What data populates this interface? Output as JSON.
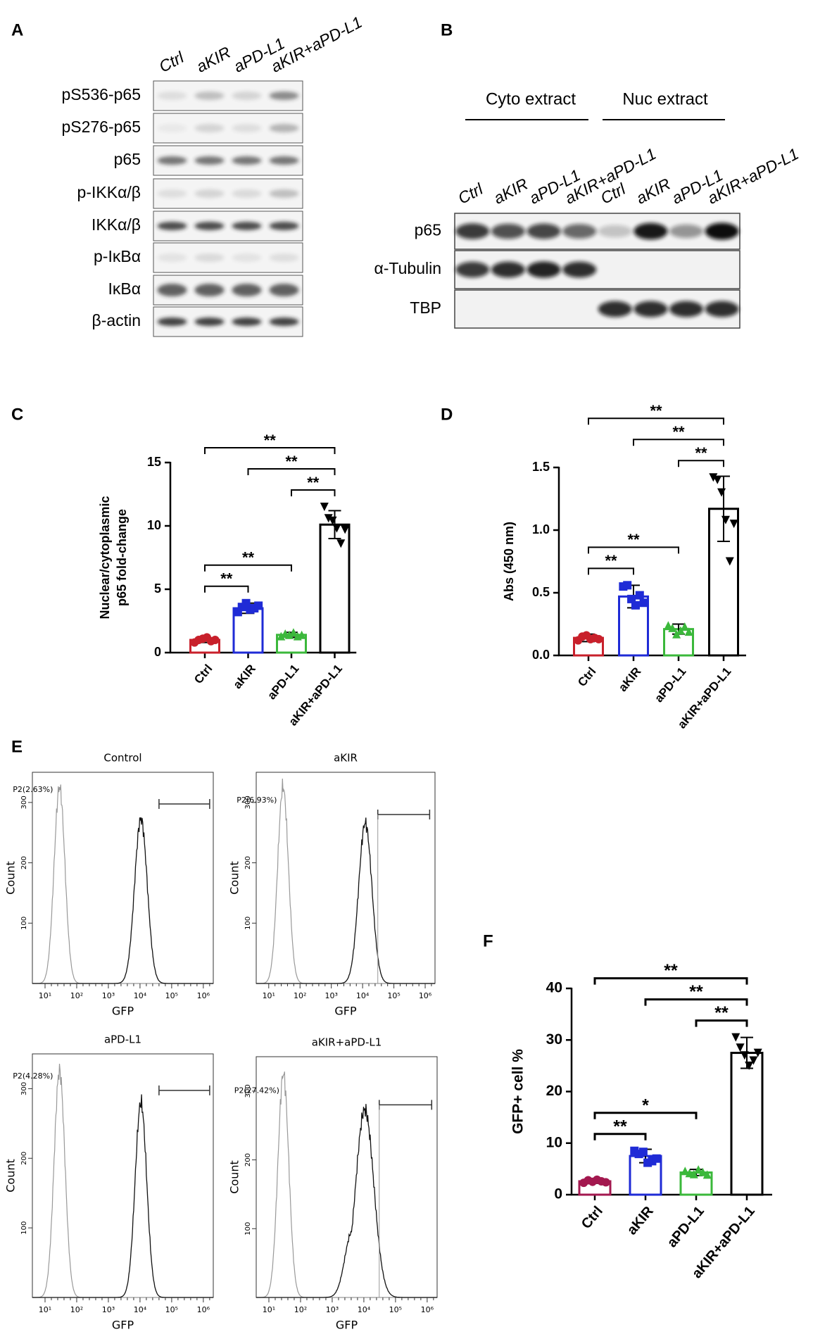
{
  "panel_labels": [
    "A",
    "B",
    "C",
    "D",
    "E",
    "F"
  ],
  "blot_a": {
    "lanes": [
      "Ctrl",
      "aKIR",
      "aPD-L1",
      "aKIR+aPD-L1"
    ],
    "rows": [
      "pS536-p65",
      "pS276-p65",
      "p65",
      "p-IKKα/β",
      "IKKα/β",
      "p-IκBα",
      "IκBα",
      "β-actin"
    ]
  },
  "blot_b": {
    "groups": [
      "Cyto extract",
      "Nuc extract"
    ],
    "lanes": [
      "Ctrl",
      "aKIR",
      "aPD-L1",
      "aKIR+aPD-L1",
      "Ctrl",
      "aKIR",
      "aPD-L1",
      "aKIR+aPD-L1"
    ],
    "rows": [
      "p65",
      "α-Tubulin",
      "TBP"
    ]
  },
  "flow": {
    "x_label": "GFP",
    "y_label": "Count",
    "xtick_labels": [
      "10¹",
      "10²",
      "10³",
      "10⁴",
      "10⁵",
      "10⁶"
    ],
    "yticks": [
      100,
      200,
      300
    ],
    "panels": [
      {
        "title": "Control",
        "gate": "P2(2.63%)"
      },
      {
        "title": "aKIR",
        "gate": "P2(6.93%)"
      },
      {
        "title": "aPD-L1",
        "gate": "P2(4.28%)"
      },
      {
        "title": "aKIR+aPD-L1",
        "gate": "P2(27.42%)"
      }
    ]
  },
  "chart_data": [
    {
      "type": "bar",
      "y_label": [
        "Nuclear/cytoplasmic",
        "p65 fold-change"
      ],
      "categories": [
        "Ctrl",
        "aKIR",
        "aPD-L1",
        "aKIR+aPD-L1"
      ],
      "colors": [
        "#c8202b",
        "#1f2bd6",
        "#3bb83b",
        "#000000"
      ],
      "values": [
        1.0,
        3.5,
        1.4,
        10.1
      ],
      "errors": [
        0.2,
        0.4,
        0.2,
        1.1
      ],
      "points": [
        [
          0.8,
          1.0,
          1.1,
          1.2,
          0.9,
          1.0
        ],
        [
          3.2,
          3.6,
          3.9,
          3.4,
          3.5,
          3.7
        ],
        [
          1.3,
          1.5,
          1.4,
          1.6,
          1.3,
          1.4
        ],
        [
          11.5,
          10.6,
          10.4,
          9.8,
          8.6,
          9.7
        ]
      ],
      "ylim": [
        0,
        15
      ],
      "yticks": [
        0,
        5,
        10,
        15
      ],
      "significance": [
        {
          "label": "**",
          "between": [
            "Ctrl",
            "aKIR"
          ]
        },
        {
          "label": "**",
          "between": [
            "Ctrl",
            "aPD-L1"
          ]
        },
        {
          "label": "**",
          "between": [
            "aPD-L1",
            "aKIR+aPD-L1"
          ]
        },
        {
          "label": "**",
          "between": [
            "aKIR",
            "aKIR+aPD-L1"
          ]
        },
        {
          "label": "**",
          "between": [
            "Ctrl",
            "aKIR+aPD-L1"
          ]
        }
      ]
    },
    {
      "type": "bar",
      "y_label": [
        "Abs (450 nm)"
      ],
      "categories": [
        "Ctrl",
        "aKIR",
        "aPD-L1",
        "aKIR+aPD-L1"
      ],
      "colors": [
        "#c8202b",
        "#1f2bd6",
        "#3bb83b",
        "#000000"
      ],
      "values": [
        0.14,
        0.47,
        0.21,
        1.17
      ],
      "errors": [
        0.03,
        0.09,
        0.04,
        0.26
      ],
      "points": [
        [
          0.12,
          0.15,
          0.16,
          0.13,
          0.14,
          0.13
        ],
        [
          0.55,
          0.56,
          0.45,
          0.4,
          0.48,
          0.42
        ],
        [
          0.24,
          0.22,
          0.17,
          0.2,
          0.23,
          0.19
        ],
        [
          1.42,
          1.4,
          1.3,
          1.08,
          0.75,
          1.05
        ]
      ],
      "ylim": [
        0,
        1.5
      ],
      "yticks": [
        {
          "value": 0,
          "label": "0.0"
        },
        {
          "value": 0.5,
          "label": "0.5"
        },
        {
          "value": 1,
          "label": "1.0"
        },
        {
          "value": 1.5,
          "label": "1.5"
        }
      ],
      "significance": [
        {
          "label": "**",
          "between": [
            "Ctrl",
            "aKIR"
          ]
        },
        {
          "label": "**",
          "between": [
            "Ctrl",
            "aPD-L1"
          ]
        },
        {
          "label": "**",
          "between": [
            "aPD-L1",
            "aKIR+aPD-L1"
          ]
        },
        {
          "label": "**",
          "between": [
            "aKIR",
            "aKIR+aPD-L1"
          ]
        },
        {
          "label": "**",
          "between": [
            "Ctrl",
            "aKIR+aPD-L1"
          ]
        }
      ]
    },
    {
      "type": "bar",
      "y_label": [
        "GFP+ cell %"
      ],
      "categories": [
        "Ctrl",
        "aKIR",
        "aPD-L1",
        "aKIR+aPD-L1"
      ],
      "colors": [
        "#a3184f",
        "#1f2bd6",
        "#3bb83b",
        "#000000"
      ],
      "values": [
        2.6,
        7.5,
        4.3,
        27.5
      ],
      "errors": [
        0.4,
        1.3,
        0.6,
        3.0
      ],
      "points": [
        [
          2.3,
          2.8,
          2.5,
          2.9,
          2.6,
          2.4
        ],
        [
          8.5,
          7.9,
          8.3,
          6.2,
          6.5,
          7.0
        ],
        [
          4.6,
          4.2,
          4.0,
          4.9,
          4.4,
          3.9
        ],
        [
          30.5,
          28.5,
          27.0,
          25.0,
          26.0,
          27.5
        ]
      ],
      "ylim": [
        0,
        40
      ],
      "yticks": [
        0,
        10,
        20,
        30,
        40
      ],
      "significance": [
        {
          "label": "**",
          "between": [
            "Ctrl",
            "aKIR"
          ]
        },
        {
          "label": "*",
          "between": [
            "Ctrl",
            "aPD-L1"
          ]
        },
        {
          "label": "**",
          "between": [
            "aPD-L1",
            "aKIR+aPD-L1"
          ]
        },
        {
          "label": "**",
          "between": [
            "aKIR",
            "aKIR+aPD-L1"
          ]
        },
        {
          "label": "**",
          "between": [
            "Ctrl",
            "aKIR+aPD-L1"
          ]
        }
      ]
    }
  ]
}
